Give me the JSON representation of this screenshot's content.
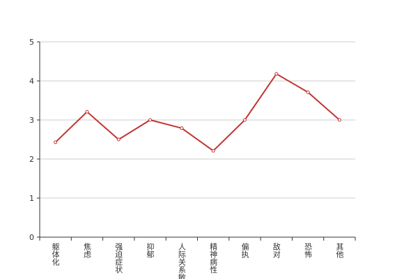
{
  "chart_data": {
    "type": "line",
    "categories": [
      "躯体化",
      "焦虑",
      "强迫症状",
      "抑郁",
      "人际关系敏感",
      "精神病性",
      "偏执",
      "敌对",
      "恐怖",
      "其他"
    ],
    "values": [
      2.43,
      3.21,
      2.5,
      3.0,
      2.79,
      2.21,
      3.0,
      4.18,
      3.71,
      3.0
    ],
    "color": "#c23531",
    "ylim": [
      0,
      5
    ],
    "yticks": [
      0,
      1,
      2,
      3,
      4,
      5
    ],
    "grid": true
  }
}
